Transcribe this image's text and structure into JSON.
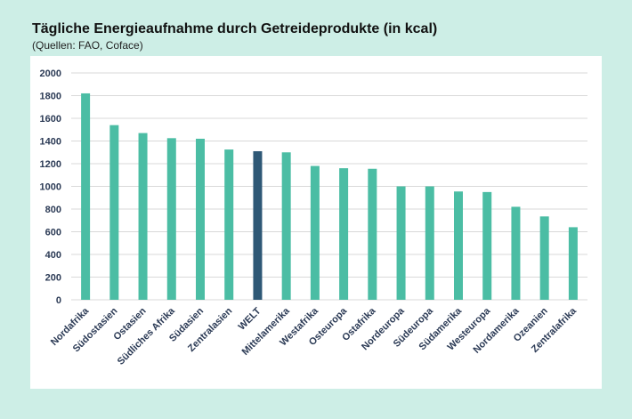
{
  "header": {
    "title": "Tägliche Energieaufnahme durch Getreideprodukte (in kcal)",
    "subtitle": "(Quellen: FAO, Coface)"
  },
  "colors": {
    "bar": "#4bbda4",
    "highlight": "#2e5876",
    "grid": "#d9d9d9",
    "label": "#2b3a55",
    "background": "#cdeee6",
    "panel": "#ffffff"
  },
  "chart_data": {
    "type": "bar",
    "title": "Tägliche Energieaufnahme durch Getreideprodukte (in kcal)",
    "subtitle": "(Quellen: FAO, Coface)",
    "xlabel": "",
    "ylabel": "",
    "ylim": [
      0,
      2000
    ],
    "yticks": [
      0,
      200,
      400,
      600,
      800,
      1000,
      1200,
      1400,
      1600,
      1800,
      2000
    ],
    "grid": true,
    "legend": "none",
    "highlight_category": "WELT",
    "categories": [
      "Nordafrika",
      "Südostasien",
      "Ostasien",
      "Südliches Afrika",
      "Südasien",
      "Zentralasien",
      "WELT",
      "Mittelamerika",
      "Westafrika",
      "Osteuropa",
      "Ostafrika",
      "Nordeuropa",
      "Südeuropa",
      "Südamerika",
      "Westeuropa",
      "Nordamerika",
      "Ozeanien",
      "Zentralafrika"
    ],
    "values": [
      1820,
      1540,
      1470,
      1425,
      1420,
      1325,
      1310,
      1300,
      1180,
      1160,
      1155,
      1000,
      1000,
      955,
      950,
      820,
      735,
      640
    ]
  }
}
